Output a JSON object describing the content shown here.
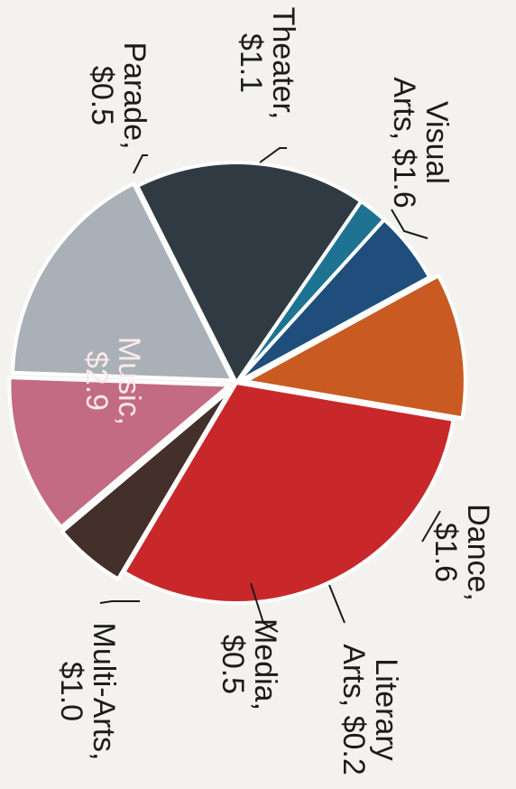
{
  "chart_data": {
    "type": "pie",
    "unit": "$",
    "slices": [
      {
        "label": "Visual Arts",
        "value": 1.6,
        "text": [
          "Visual",
          "Arts, $1.6"
        ],
        "color": "#a9b0b7",
        "offset": 5
      },
      {
        "label": "Dance",
        "value": 1.6,
        "text": [
          "Dance,",
          "$1.6"
        ],
        "color": "#2f3a42",
        "offset": 0
      },
      {
        "label": "Literary Arts",
        "value": 0.2,
        "text": [
          "Literary",
          "Arts, $0.2"
        ],
        "color": "#1f7392",
        "offset": 0
      },
      {
        "label": "Media",
        "value": 0.5,
        "text": [
          "Media,",
          "$0.5"
        ],
        "color": "#1f4e7d",
        "offset": 0
      },
      {
        "label": "Multi-Arts",
        "value": 1.0,
        "text": [
          "Multi-Arts,",
          "$1.0"
        ],
        "color": "#c95a22",
        "offset": 10
      },
      {
        "label": "Music",
        "value": 2.9,
        "text": [
          "Music,",
          "$2.9"
        ],
        "color": "#c9282b",
        "offset": 0
      },
      {
        "label": "Parade",
        "value": 0.5,
        "text": [
          "Parade,",
          "$0.5"
        ],
        "color": "#43302a",
        "offset": 10
      },
      {
        "label": "Theater",
        "value": 1.1,
        "text": [
          "Theater,",
          "$1.1"
        ],
        "color": "#c36b82",
        "offset": 8
      }
    ]
  }
}
